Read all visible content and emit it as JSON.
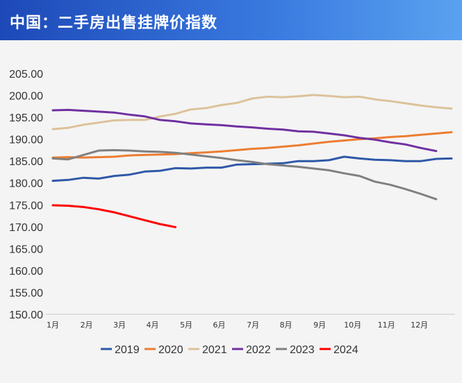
{
  "header": {
    "title": "中国：二手房出售挂牌价指数"
  },
  "chart_data": {
    "type": "line",
    "title": "中国：二手房出售挂牌价指数",
    "ylim": [
      150,
      205
    ],
    "yticks": [
      "150.00",
      "155.00",
      "160.00",
      "165.00",
      "170.00",
      "175.00",
      "180.00",
      "185.00",
      "190.00",
      "195.00",
      "200.00",
      "205.00"
    ],
    "xticks": [
      "1月",
      "2月",
      "3月",
      "4月",
      "5月",
      "6月",
      "7月",
      "8月",
      "9月",
      "10月",
      "11月",
      "12月"
    ],
    "x_unit": "week",
    "legend_position": "bottom",
    "grid": false,
    "series": [
      {
        "name": "2019",
        "color": "#2e58a8",
        "x": [
          1,
          3,
          5,
          7,
          9,
          11,
          13,
          15,
          17,
          19,
          21,
          23,
          25,
          27,
          29,
          31,
          33,
          35,
          37,
          39,
          41,
          43,
          45,
          47,
          49,
          51,
          53
        ],
        "values": [
          180.5,
          180.7,
          181.2,
          181.0,
          181.6,
          181.9,
          182.6,
          182.8,
          183.4,
          183.3,
          183.5,
          183.5,
          184.2,
          184.3,
          184.4,
          184.5,
          185.0,
          185.0,
          185.2,
          186.0,
          185.6,
          185.3,
          185.2,
          185.0,
          185.0,
          185.5,
          185.6
        ]
      },
      {
        "name": "2020",
        "color": "#ed7d31",
        "x": [
          1,
          3,
          5,
          7,
          9,
          11,
          13,
          15,
          17,
          19,
          21,
          23,
          25,
          27,
          29,
          31,
          33,
          35,
          37,
          39,
          41,
          43,
          45,
          47,
          49,
          51,
          53
        ],
        "values": [
          185.8,
          185.9,
          185.8,
          185.9,
          186.0,
          186.3,
          186.4,
          186.5,
          186.6,
          186.8,
          187.0,
          187.2,
          187.5,
          187.8,
          188.0,
          188.3,
          188.6,
          189.0,
          189.4,
          189.7,
          190.0,
          190.2,
          190.5,
          190.7,
          191.0,
          191.3,
          191.6
        ]
      },
      {
        "name": "2021",
        "color": "#dcc29a",
        "x": [
          1,
          3,
          5,
          7,
          9,
          11,
          13,
          15,
          17,
          19,
          21,
          23,
          25,
          27,
          29,
          31,
          33,
          35,
          37,
          39,
          41,
          43,
          45,
          47,
          49,
          51,
          53
        ],
        "values": [
          192.3,
          192.6,
          193.3,
          193.8,
          194.3,
          194.4,
          194.4,
          195.2,
          195.8,
          196.8,
          197.1,
          197.8,
          198.3,
          199.3,
          199.7,
          199.6,
          199.8,
          200.1,
          199.9,
          199.6,
          199.7,
          199.1,
          198.7,
          198.2,
          197.7,
          197.3,
          197.0
        ]
      },
      {
        "name": "2022",
        "color": "#7030a0",
        "x": [
          1,
          3,
          5,
          7,
          9,
          11,
          13,
          15,
          17,
          19,
          21,
          23,
          25,
          27,
          29,
          31,
          33,
          35,
          37,
          39,
          41,
          43,
          45,
          47,
          49,
          51
        ],
        "values": [
          196.6,
          196.7,
          196.5,
          196.3,
          196.1,
          195.6,
          195.2,
          194.4,
          194.1,
          193.6,
          193.4,
          193.2,
          192.9,
          192.7,
          192.4,
          192.2,
          191.8,
          191.7,
          191.3,
          190.9,
          190.3,
          189.9,
          189.3,
          188.8,
          188.0,
          187.3
        ]
      },
      {
        "name": "2023",
        "color": "#808080",
        "x": [
          1,
          3,
          5,
          7,
          9,
          11,
          13,
          15,
          17,
          19,
          21,
          23,
          25,
          27,
          29,
          31,
          33,
          35,
          37,
          39,
          41,
          43,
          45,
          47,
          49,
          51
        ],
        "values": [
          185.6,
          185.4,
          186.4,
          187.4,
          187.5,
          187.4,
          187.2,
          187.1,
          186.9,
          186.5,
          186.1,
          185.7,
          185.2,
          184.8,
          184.3,
          184.0,
          183.7,
          183.3,
          182.9,
          182.2,
          181.6,
          180.3,
          179.6,
          178.6,
          177.5,
          176.3
        ]
      },
      {
        "name": "2024",
        "color": "#ff0000",
        "x": [
          1,
          3,
          5,
          7,
          9,
          11,
          13,
          15,
          17
        ],
        "values": [
          174.9,
          174.8,
          174.5,
          174.0,
          173.3,
          172.4,
          171.5,
          170.6,
          169.9
        ]
      }
    ]
  }
}
